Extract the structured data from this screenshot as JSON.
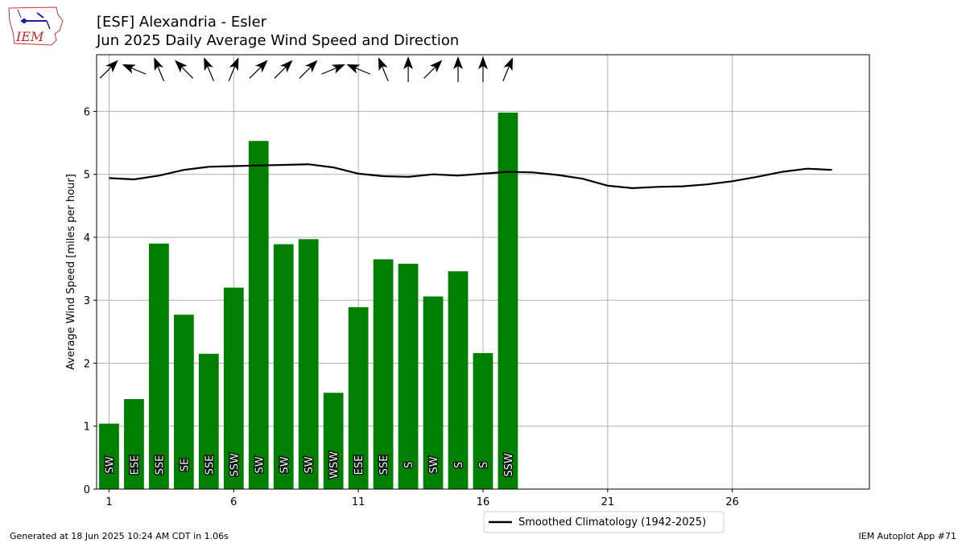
{
  "header": {
    "title_line1": "[ESF] Alexandria - Esler",
    "title_line2": "Jun 2025 Daily Average Wind Speed and Direction"
  },
  "logo": {
    "text": "IEM",
    "icon": "iem-logo-icon"
  },
  "footer": {
    "left": "Generated at 18 Jun 2025 10:24 AM CDT in 1.06s",
    "right": "IEM Autoplot App #71"
  },
  "colors": {
    "bar": "#008000",
    "clim": "#000000",
    "grid": "#b0b0b0"
  },
  "chart_data": {
    "type": "bar",
    "title": "Jun 2025 Daily Average Wind Speed and Direction",
    "ylabel": "Average Wind Speed [miles per hour]",
    "xlabel": "",
    "xlim": [
      0.5,
      31.5
    ],
    "ylim": [
      0,
      6.9
    ],
    "xticks": [
      1,
      6,
      11,
      16,
      21,
      26
    ],
    "yticks": [
      0,
      1,
      2,
      3,
      4,
      5,
      6
    ],
    "grid": true,
    "legend_position": "below",
    "days": [
      1,
      2,
      3,
      4,
      5,
      6,
      7,
      8,
      9,
      10,
      11,
      12,
      13,
      14,
      15,
      16,
      17
    ],
    "values": [
      1.04,
      1.43,
      3.9,
      2.77,
      2.15,
      3.2,
      5.53,
      3.89,
      3.97,
      1.53,
      2.89,
      3.65,
      3.58,
      3.06,
      3.46,
      2.16,
      5.98
    ],
    "directions": [
      "SW",
      "ESE",
      "SSE",
      "SE",
      "SSE",
      "SSW",
      "SW",
      "SW",
      "SW",
      "WSW",
      "ESE",
      "SSE",
      "S",
      "SW",
      "S",
      "S",
      "SSW"
    ],
    "climatology": {
      "name": "Smoothed Climatology (1942-2025)",
      "x": [
        1,
        2,
        3,
        4,
        5,
        6,
        7,
        8,
        9,
        10,
        11,
        12,
        13,
        14,
        15,
        16,
        17,
        18,
        19,
        20,
        21,
        22,
        23,
        24,
        25,
        26,
        27,
        28,
        29,
        30
      ],
      "y": [
        4.94,
        4.92,
        4.98,
        5.07,
        5.12,
        5.13,
        5.14,
        5.15,
        5.16,
        5.11,
        5.01,
        4.97,
        4.96,
        5.0,
        4.98,
        5.01,
        5.04,
        5.03,
        4.99,
        4.93,
        4.82,
        4.78,
        4.8,
        4.81,
        4.84,
        4.89,
        4.96,
        5.04,
        5.09,
        5.07
      ]
    }
  }
}
